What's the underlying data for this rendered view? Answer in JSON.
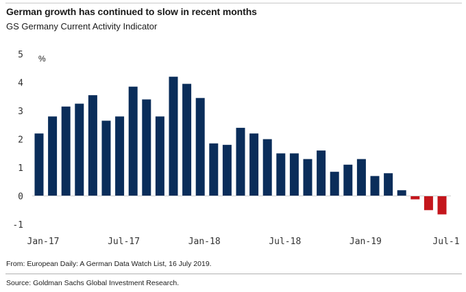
{
  "header": {
    "title": "German growth has continued to slow in recent months",
    "subtitle": "GS Germany Current Activity Indicator"
  },
  "footer": {
    "from": "From: European Daily: A German Data Watch List, 16 July 2019.",
    "source": "Source: Goldman Sachs Global Investment Research."
  },
  "chart_data": {
    "type": "bar",
    "title": "German growth has continued to slow in recent months",
    "subtitle": "GS Germany Current Activity Indicator",
    "unit_label": "%",
    "ylim": [
      -1,
      5
    ],
    "yticks": [
      "-1",
      "0",
      "1",
      "2",
      "3",
      "4",
      "5"
    ],
    "grid": false,
    "xtick_labels": [
      "Jan-17",
      "Jul-17",
      "Jan-18",
      "Jul-18",
      "Jan-19",
      "Jul-1"
    ],
    "categories": [
      "Jan-17",
      "Feb-17",
      "Mar-17",
      "Apr-17",
      "May-17",
      "Jun-17",
      "Jul-17",
      "Aug-17",
      "Sep-17",
      "Oct-17",
      "Nov-17",
      "Dec-17",
      "Jan-18",
      "Feb-18",
      "Mar-18",
      "Apr-18",
      "May-18",
      "Jun-18",
      "Jul-18",
      "Aug-18",
      "Sep-18",
      "Oct-18",
      "Nov-18",
      "Dec-18",
      "Jan-19",
      "Feb-19",
      "Mar-19",
      "Apr-19",
      "May-19",
      "Jun-19",
      "Jul-19"
    ],
    "values": [
      2.2,
      2.8,
      3.15,
      3.25,
      3.55,
      2.65,
      2.8,
      3.85,
      3.4,
      2.8,
      4.2,
      3.95,
      3.45,
      1.85,
      1.8,
      2.4,
      2.2,
      2.0,
      1.5,
      1.5,
      1.3,
      1.6,
      0.85,
      1.1,
      1.3,
      0.7,
      0.8,
      0.2,
      -0.12,
      -0.5,
      -0.65
    ],
    "colors": {
      "positive": "#0a2d5a",
      "negative": "#c4161c"
    }
  }
}
